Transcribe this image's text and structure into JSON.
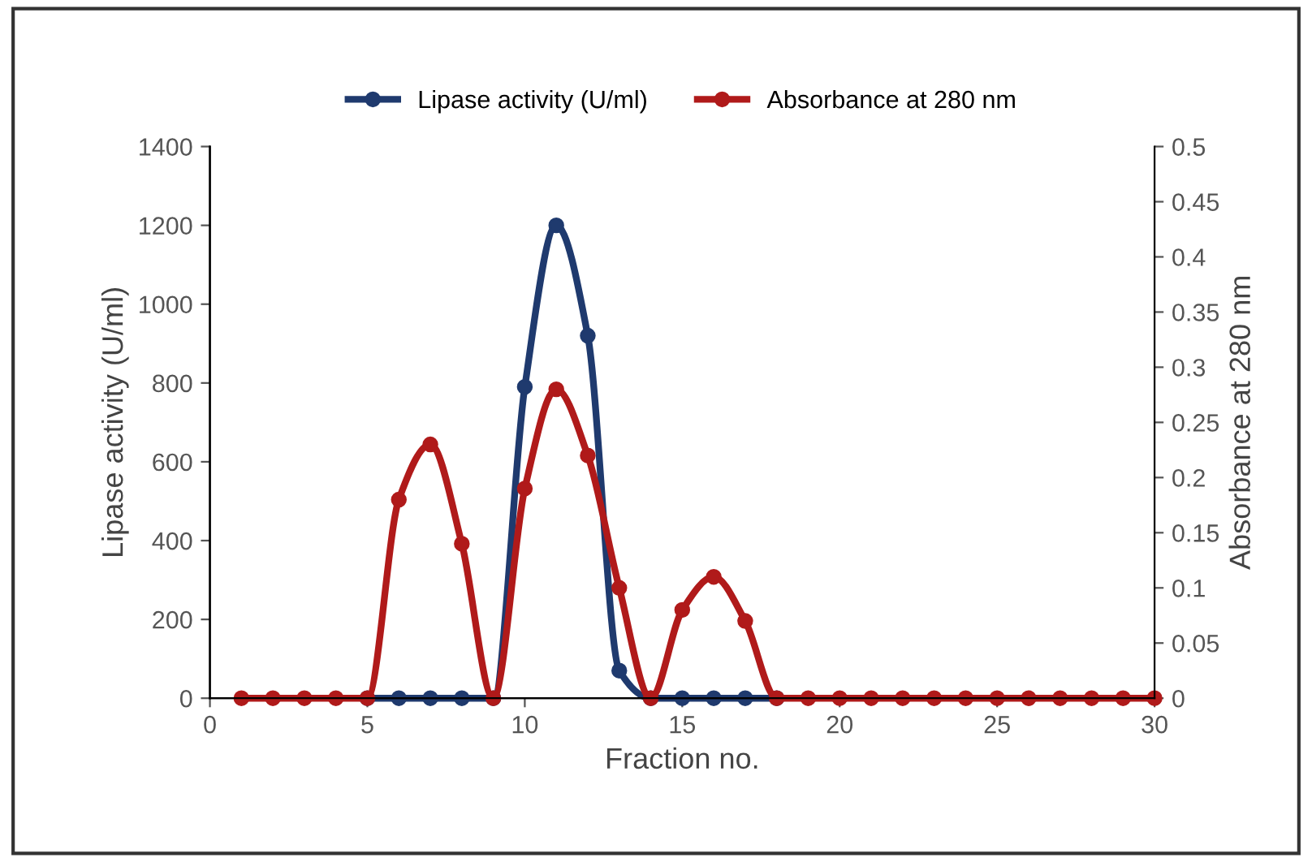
{
  "chart_data": {
    "type": "line",
    "xlabel": "Fraction no.",
    "ylabel": "Lipase activity (U/ml)",
    "y2label": "Absorbance at 280 nm",
    "x": [
      1,
      2,
      3,
      4,
      5,
      6,
      7,
      8,
      9,
      10,
      11,
      12,
      13,
      14,
      15,
      16,
      17,
      18,
      19,
      20,
      21,
      22,
      23,
      24,
      25,
      26,
      27,
      28,
      29,
      30
    ],
    "series": [
      {
        "name": "Lipase activity (U/ml)",
        "color": "#1f3a6e",
        "values": [
          null,
          null,
          null,
          null,
          0,
          0,
          0,
          0,
          0,
          790,
          1200,
          920,
          70,
          0,
          0,
          0,
          0,
          0,
          null,
          null,
          null,
          null,
          null,
          null,
          null,
          null,
          null,
          null,
          null,
          null
        ]
      },
      {
        "name": "Absorbance at 280 nm",
        "color": "#b01a1a",
        "axis": "y2",
        "values": [
          0,
          0,
          0,
          0,
          0,
          0.18,
          0.23,
          0.14,
          0,
          0.19,
          0.28,
          0.22,
          0.1,
          0,
          0.08,
          0.11,
          0.07,
          0,
          0,
          0,
          0,
          0,
          0,
          0,
          0,
          0,
          0,
          0,
          0,
          0
        ]
      }
    ],
    "xlim": [
      0,
      30
    ],
    "xticks": [
      0,
      5,
      10,
      15,
      20,
      25,
      30
    ],
    "ylim": [
      0,
      1400
    ],
    "yticks": [
      0,
      200,
      400,
      600,
      800,
      1000,
      1200,
      1400
    ],
    "y2lim": [
      0,
      0.5
    ],
    "y2ticks": [
      0,
      0.05,
      0.1,
      0.15,
      0.2,
      0.25,
      0.3,
      0.35,
      0.4,
      0.45,
      0.5
    ],
    "grid": false,
    "legend": "top",
    "marker": "circle",
    "line_style": "solid"
  }
}
